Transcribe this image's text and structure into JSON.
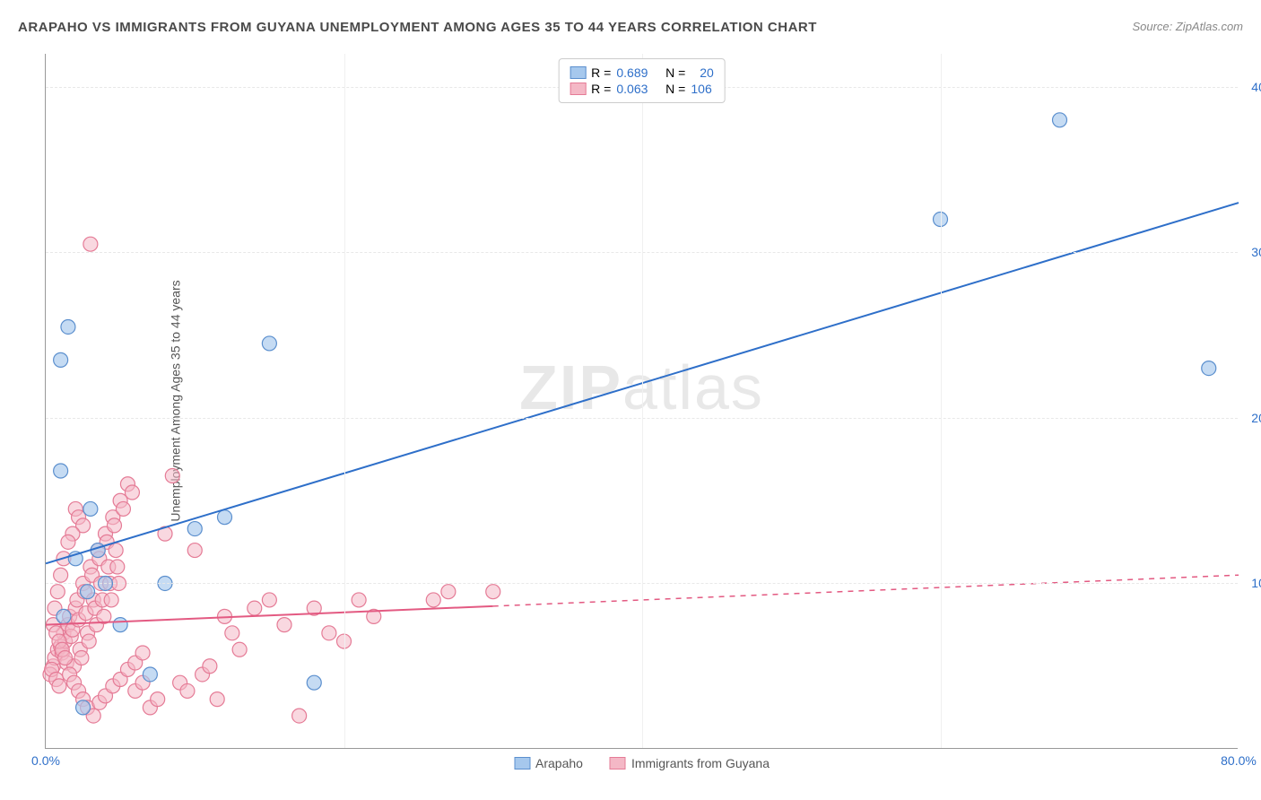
{
  "title": "ARAPAHO VS IMMIGRANTS FROM GUYANA UNEMPLOYMENT AMONG AGES 35 TO 44 YEARS CORRELATION CHART",
  "source": "Source: ZipAtlas.com",
  "ylabel": "Unemployment Among Ages 35 to 44 years",
  "watermark_bold": "ZIP",
  "watermark_light": "atlas",
  "chart": {
    "type": "scatter",
    "xlim": [
      0,
      80
    ],
    "ylim": [
      0,
      42
    ],
    "xtick_values": [
      0,
      80
    ],
    "xtick_labels": [
      "0.0%",
      "80.0%"
    ],
    "ytick_values": [
      10,
      20,
      30,
      40
    ],
    "ytick_labels": [
      "10.0%",
      "20.0%",
      "30.0%",
      "40.0%"
    ],
    "grid_color": "#e8e8e8",
    "background_color": "#ffffff",
    "axis_color": "#999999",
    "series": [
      {
        "name": "Arapaho",
        "label": "Arapaho",
        "fill_color": "#a6c8ed",
        "stroke_color": "#5b8fce",
        "line_color": "#2e6fc9",
        "marker_radius": 8,
        "marker_opacity": 0.65,
        "R": "0.689",
        "N": "20",
        "trend": {
          "x1": 0,
          "y1": 11.2,
          "x2": 80,
          "y2": 33.0,
          "solid_until_x": 80,
          "dash": false
        },
        "points": [
          [
            1.0,
            23.5
          ],
          [
            1.5,
            25.5
          ],
          [
            1.0,
            16.8
          ],
          [
            2.0,
            11.5
          ],
          [
            3.0,
            14.5
          ],
          [
            3.5,
            12.0
          ],
          [
            4.0,
            10.0
          ],
          [
            5.0,
            7.5
          ],
          [
            8.0,
            10.0
          ],
          [
            10.0,
            13.3
          ],
          [
            12.0,
            14.0
          ],
          [
            15.0,
            24.5
          ],
          [
            18.0,
            4.0
          ],
          [
            60.0,
            32.0
          ],
          [
            68.0,
            38.0
          ],
          [
            78.0,
            23.0
          ],
          [
            2.5,
            2.5
          ],
          [
            7.0,
            4.5
          ],
          [
            1.2,
            8.0
          ],
          [
            2.8,
            9.5
          ]
        ]
      },
      {
        "name": "Immigrants from Guyana",
        "label": "Immigrants from Guyana",
        "fill_color": "#f4b8c6",
        "stroke_color": "#e57b96",
        "line_color": "#e35a82",
        "marker_radius": 8,
        "marker_opacity": 0.55,
        "R": "0.063",
        "N": "106",
        "trend": {
          "x1": 0,
          "y1": 7.5,
          "x2": 80,
          "y2": 10.5,
          "solid_until_x": 30,
          "dash": true
        },
        "points": [
          [
            0.5,
            5.0
          ],
          [
            0.6,
            5.5
          ],
          [
            0.8,
            6.0
          ],
          [
            1.0,
            6.2
          ],
          [
            1.1,
            5.8
          ],
          [
            1.2,
            7.0
          ],
          [
            1.3,
            6.5
          ],
          [
            1.4,
            5.2
          ],
          [
            1.5,
            7.5
          ],
          [
            1.6,
            8.0
          ],
          [
            1.7,
            6.8
          ],
          [
            1.8,
            7.2
          ],
          [
            1.9,
            5.0
          ],
          [
            2.0,
            8.5
          ],
          [
            2.1,
            9.0
          ],
          [
            2.2,
            7.8
          ],
          [
            2.3,
            6.0
          ],
          [
            2.4,
            5.5
          ],
          [
            2.5,
            10.0
          ],
          [
            2.6,
            9.5
          ],
          [
            2.7,
            8.2
          ],
          [
            2.8,
            7.0
          ],
          [
            2.9,
            6.5
          ],
          [
            3.0,
            11.0
          ],
          [
            3.1,
            10.5
          ],
          [
            3.2,
            9.0
          ],
          [
            3.3,
            8.5
          ],
          [
            3.4,
            7.5
          ],
          [
            3.5,
            12.0
          ],
          [
            3.6,
            11.5
          ],
          [
            3.7,
            10.0
          ],
          [
            3.8,
            9.0
          ],
          [
            3.9,
            8.0
          ],
          [
            4.0,
            13.0
          ],
          [
            4.1,
            12.5
          ],
          [
            4.2,
            11.0
          ],
          [
            4.3,
            10.0
          ],
          [
            4.4,
            9.0
          ],
          [
            4.5,
            14.0
          ],
          [
            4.6,
            13.5
          ],
          [
            4.7,
            12.0
          ],
          [
            4.8,
            11.0
          ],
          [
            4.9,
            10.0
          ],
          [
            5.0,
            15.0
          ],
          [
            5.2,
            14.5
          ],
          [
            5.5,
            16.0
          ],
          [
            5.8,
            15.5
          ],
          [
            6.0,
            3.5
          ],
          [
            6.5,
            4.0
          ],
          [
            7.0,
            2.5
          ],
          [
            7.5,
            3.0
          ],
          [
            8.0,
            13.0
          ],
          [
            8.5,
            16.5
          ],
          [
            9.0,
            4.0
          ],
          [
            9.5,
            3.5
          ],
          [
            10.0,
            12.0
          ],
          [
            10.5,
            4.5
          ],
          [
            11.0,
            5.0
          ],
          [
            11.5,
            3.0
          ],
          [
            12.0,
            8.0
          ],
          [
            12.5,
            7.0
          ],
          [
            13.0,
            6.0
          ],
          [
            14.0,
            8.5
          ],
          [
            15.0,
            9.0
          ],
          [
            16.0,
            7.5
          ],
          [
            17.0,
            2.0
          ],
          [
            18.0,
            8.5
          ],
          [
            19.0,
            7.0
          ],
          [
            20.0,
            6.5
          ],
          [
            21.0,
            9.0
          ],
          [
            22.0,
            8.0
          ],
          [
            26.0,
            9.0
          ],
          [
            27.0,
            9.5
          ],
          [
            30.0,
            9.5
          ],
          [
            0.3,
            4.5
          ],
          [
            0.4,
            4.8
          ],
          [
            0.7,
            4.2
          ],
          [
            0.9,
            3.8
          ],
          [
            3.0,
            30.5
          ],
          [
            2.0,
            14.5
          ],
          [
            2.2,
            14.0
          ],
          [
            2.5,
            13.5
          ],
          [
            1.8,
            13.0
          ],
          [
            1.5,
            12.5
          ],
          [
            1.2,
            11.5
          ],
          [
            1.0,
            10.5
          ],
          [
            0.8,
            9.5
          ],
          [
            0.6,
            8.5
          ],
          [
            0.5,
            7.5
          ],
          [
            0.7,
            7.0
          ],
          [
            0.9,
            6.5
          ],
          [
            1.1,
            6.0
          ],
          [
            1.3,
            5.5
          ],
          [
            1.6,
            4.5
          ],
          [
            1.9,
            4.0
          ],
          [
            2.2,
            3.5
          ],
          [
            2.5,
            3.0
          ],
          [
            2.8,
            2.5
          ],
          [
            3.2,
            2.0
          ],
          [
            3.6,
            2.8
          ],
          [
            4.0,
            3.2
          ],
          [
            4.5,
            3.8
          ],
          [
            5.0,
            4.2
          ],
          [
            5.5,
            4.8
          ],
          [
            6.0,
            5.2
          ],
          [
            6.5,
            5.8
          ]
        ]
      }
    ]
  },
  "legend_top": {
    "stat_color": "#2e6fc9",
    "label_R": "R =",
    "label_N": "N ="
  },
  "legend_bottom": [
    {
      "label": "Arapaho",
      "fill": "#a6c8ed",
      "stroke": "#5b8fce"
    },
    {
      "label": "Immigrants from Guyana",
      "fill": "#f4b8c6",
      "stroke": "#e57b96"
    }
  ]
}
